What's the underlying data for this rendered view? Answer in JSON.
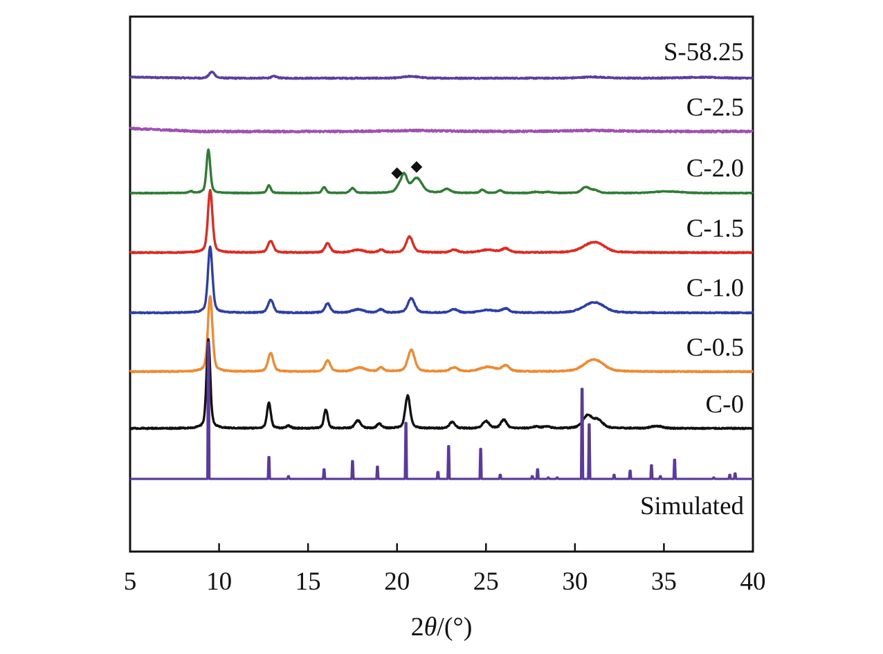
{
  "chart_data": {
    "type": "line",
    "title": "",
    "xlabel": "2θ/(°)",
    "xlabel_parts": {
      "prefix": "2",
      "theta": "θ",
      "suffix": "/(°)"
    },
    "ylabel": "",
    "xlim": [
      5,
      40
    ],
    "xticks": [
      5,
      10,
      15,
      20,
      25,
      30,
      35,
      40
    ],
    "tick_labels": [
      "5",
      "10",
      "15",
      "20",
      "25",
      "30",
      "35",
      "40"
    ],
    "yticks": [],
    "grid": false,
    "legend": "inline labels at right end of each trace",
    "offset_stacked": true,
    "annotations": [
      {
        "symbol": "◆",
        "x": 20.0,
        "series": "C-2.0",
        "meaning": "impurity phase peak"
      },
      {
        "symbol": "◆",
        "x": 21.1,
        "series": "C-2.0",
        "meaning": "impurity phase peak"
      }
    ],
    "series": [
      {
        "name": "S-58.25",
        "color": "#5b3fa0",
        "style": "pattern",
        "noise": 0.6,
        "baseline_tilt": 0.2,
        "peaks": [
          [
            9.6,
            10,
            0.15
          ],
          [
            13.1,
            3,
            0.15
          ],
          [
            20.8,
            3,
            0.4
          ],
          [
            31.0,
            2,
            0.6
          ],
          [
            37.0,
            1.5,
            1.0
          ]
        ]
      },
      {
        "name": "C-2.5",
        "color": "#a050b0",
        "style": "pattern",
        "noise": 0.9,
        "baseline_tilt": 0.55,
        "peaks": [
          [
            21.0,
            1.5,
            1.5
          ],
          [
            31.0,
            1.5,
            1.5
          ]
        ]
      },
      {
        "name": "C-2.0",
        "color": "#2e7d32",
        "style": "pattern",
        "noise": 0.4,
        "baseline_tilt": 0,
        "peaks": [
          [
            8.4,
            3,
            0.1
          ],
          [
            9.4,
            80,
            0.1
          ],
          [
            12.8,
            14,
            0.1
          ],
          [
            15.9,
            11,
            0.1
          ],
          [
            17.5,
            9,
            0.12
          ],
          [
            20.1,
            10,
            0.15
          ],
          [
            20.4,
            32,
            0.15
          ],
          [
            21.1,
            27,
            0.28
          ],
          [
            22.8,
            7,
            0.2
          ],
          [
            24.8,
            6,
            0.12
          ],
          [
            25.8,
            5,
            0.12
          ],
          [
            27.8,
            2,
            0.2
          ],
          [
            28.5,
            2,
            0.2
          ],
          [
            30.6,
            11,
            0.2
          ],
          [
            31.1,
            5,
            0.2
          ],
          [
            34.8,
            2,
            0.5
          ],
          [
            35.6,
            2,
            0.5
          ]
        ]
      },
      {
        "name": "C-1.5",
        "color": "#e02a20",
        "style": "pattern",
        "noise": 0.5,
        "baseline_tilt": 0,
        "peaks": [
          [
            9.5,
            95,
            0.12
          ],
          [
            12.9,
            18,
            0.14
          ],
          [
            16.1,
            14,
            0.14
          ],
          [
            17.8,
            4,
            0.3
          ],
          [
            19.1,
            4,
            0.14
          ],
          [
            20.7,
            24,
            0.18
          ],
          [
            23.2,
            4,
            0.2
          ],
          [
            25.1,
            4,
            0.4
          ],
          [
            26.1,
            6,
            0.2
          ],
          [
            30.9,
            12,
            0.5
          ],
          [
            31.4,
            6,
            0.4
          ]
        ]
      },
      {
        "name": "C-1.0",
        "color": "#2c3fa8",
        "style": "pattern",
        "noise": 0.5,
        "baseline_tilt": 0,
        "peaks": [
          [
            9.5,
            100,
            0.12
          ],
          [
            12.9,
            20,
            0.14
          ],
          [
            16.1,
            14,
            0.14
          ],
          [
            17.8,
            5,
            0.3
          ],
          [
            19.1,
            5,
            0.14
          ],
          [
            20.8,
            22,
            0.18
          ],
          [
            23.2,
            5,
            0.2
          ],
          [
            25.1,
            4,
            0.4
          ],
          [
            26.1,
            6,
            0.2
          ],
          [
            30.9,
            12,
            0.5
          ],
          [
            31.4,
            6,
            0.4
          ]
        ]
      },
      {
        "name": "C-0.5",
        "color": "#f08a30",
        "style": "pattern",
        "noise": 0.5,
        "baseline_tilt": 0,
        "peaks": [
          [
            9.5,
            115,
            0.12
          ],
          [
            12.9,
            28,
            0.14
          ],
          [
            16.1,
            17,
            0.14
          ],
          [
            17.9,
            6,
            0.3
          ],
          [
            19.1,
            6,
            0.14
          ],
          [
            20.8,
            33,
            0.18
          ],
          [
            23.2,
            6,
            0.2
          ],
          [
            25.1,
            7,
            0.4
          ],
          [
            26.1,
            9,
            0.2
          ],
          [
            30.9,
            14,
            0.45
          ],
          [
            31.4,
            7,
            0.4
          ]
        ]
      },
      {
        "name": "C-0",
        "color": "#111111",
        "style": "pattern",
        "noise": 0.5,
        "baseline_tilt": 0,
        "peaks": [
          [
            9.4,
            115,
            0.1
          ],
          [
            12.8,
            33,
            0.1
          ],
          [
            13.9,
            3,
            0.12
          ],
          [
            16.0,
            24,
            0.1
          ],
          [
            17.8,
            10,
            0.15
          ],
          [
            19.0,
            6,
            0.12
          ],
          [
            20.6,
            42,
            0.13
          ],
          [
            23.1,
            8,
            0.15
          ],
          [
            25.0,
            9,
            0.18
          ],
          [
            26.0,
            11,
            0.15
          ],
          [
            27.8,
            2,
            0.2
          ],
          [
            28.4,
            2,
            0.2
          ],
          [
            30.7,
            16,
            0.25
          ],
          [
            31.3,
            10,
            0.25
          ],
          [
            34.6,
            3,
            0.3
          ]
        ]
      },
      {
        "name": "Simulated",
        "color": "#5b3a9e",
        "style": "sticks",
        "noise": 0,
        "baseline_tilt": 0,
        "peaks": [
          [
            9.4,
            100
          ],
          [
            12.8,
            16
          ],
          [
            13.9,
            2
          ],
          [
            15.9,
            7
          ],
          [
            17.5,
            13
          ],
          [
            18.9,
            9
          ],
          [
            20.5,
            41
          ],
          [
            22.3,
            5
          ],
          [
            22.9,
            24
          ],
          [
            24.7,
            22
          ],
          [
            25.8,
            3
          ],
          [
            27.6,
            2
          ],
          [
            27.9,
            7
          ],
          [
            28.5,
            1
          ],
          [
            29.0,
            1
          ],
          [
            30.4,
            66
          ],
          [
            30.8,
            40
          ],
          [
            32.2,
            3
          ],
          [
            33.1,
            6
          ],
          [
            34.3,
            10
          ],
          [
            34.8,
            2
          ],
          [
            35.6,
            14
          ],
          [
            37.8,
            1
          ],
          [
            38.7,
            3
          ],
          [
            39.0,
            4
          ]
        ]
      }
    ]
  }
}
